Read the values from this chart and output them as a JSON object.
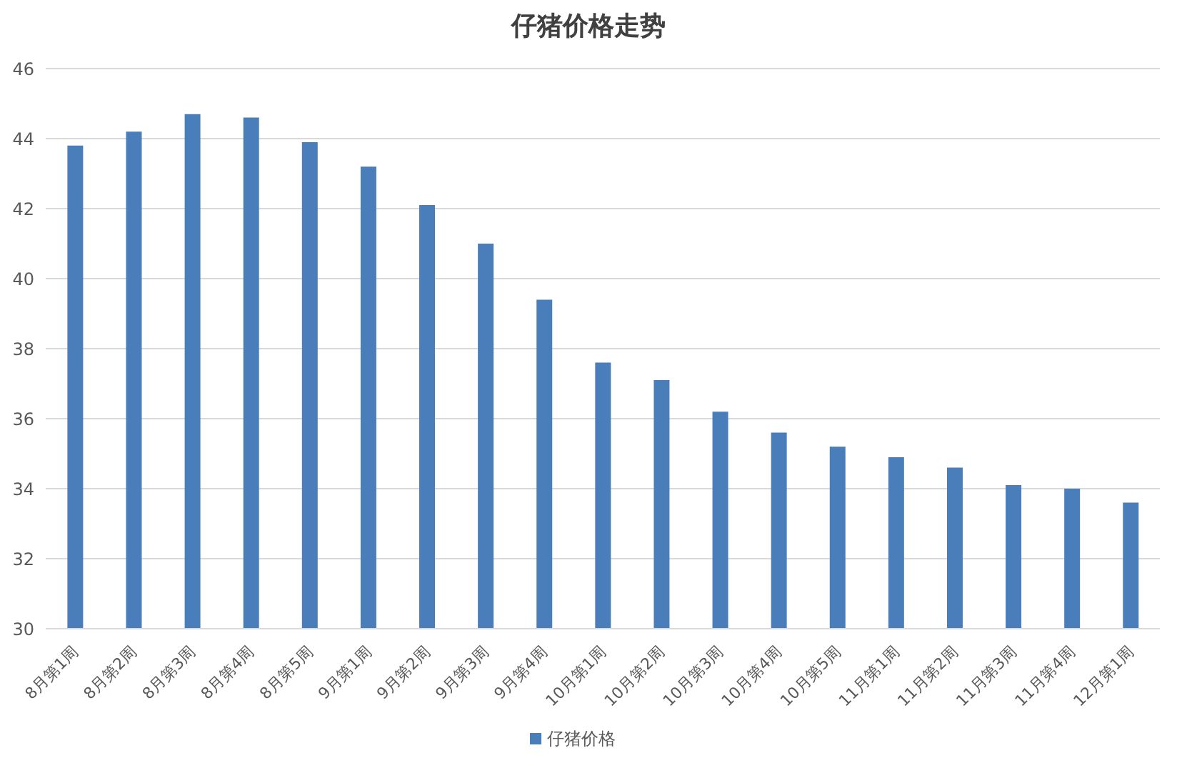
{
  "chart_data": {
    "type": "bar",
    "title": "仔猪价格走势",
    "categories": [
      "8月第1周",
      "8月第2周",
      "8月第3周",
      "8月第4周",
      "8月第5周",
      "9月第1周",
      "9月第2周",
      "9月第3周",
      "9月第4周",
      "10月第1周",
      "10月第2周",
      "10月第3周",
      "10月第4周",
      "10月第5周",
      "11月第1周",
      "11月第2周",
      "11月第3周",
      "11月第4周",
      "12月第1周"
    ],
    "series": [
      {
        "name": "仔猪价格",
        "color": "#4a7ebb",
        "values": [
          43.8,
          44.2,
          44.7,
          44.6,
          43.9,
          43.2,
          42.1,
          41.0,
          39.4,
          37.6,
          37.1,
          36.2,
          35.6,
          35.2,
          34.9,
          34.6,
          34.1,
          34.0,
          33.6
        ]
      }
    ],
    "ylim": [
      30,
      46
    ],
    "yticks": [
      30,
      32,
      34,
      36,
      38,
      40,
      42,
      44,
      46
    ],
    "grid": "y",
    "legend": "bottom"
  }
}
